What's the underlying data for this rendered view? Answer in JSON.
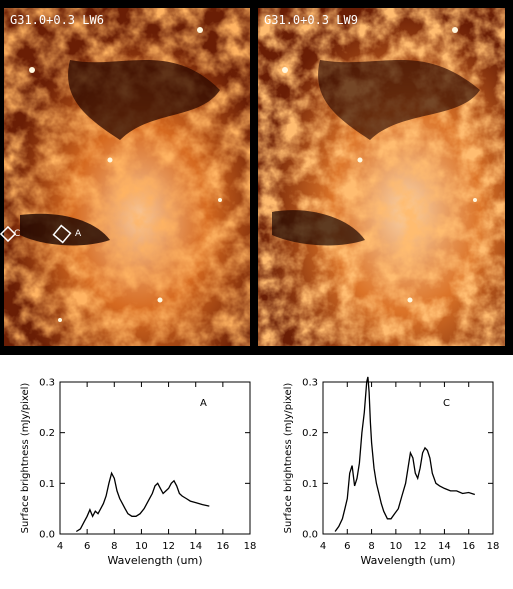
{
  "images": [
    {
      "label": "G31.0+0.3 LW6"
    },
    {
      "label": "G31.0+0.3 LW9"
    }
  ],
  "annotations": {
    "marker_a": "A",
    "marker_c": "C"
  },
  "chart_data": [
    {
      "type": "line",
      "panel_label": "A",
      "xlabel": "Wavelength (um)",
      "ylabel": "Surface brightness (mJy/pixel)",
      "xlim": [
        4,
        18
      ],
      "ylim": [
        0,
        0.3
      ],
      "xticks": [
        4,
        6,
        8,
        10,
        12,
        14,
        16,
        18
      ],
      "yticks": [
        0.0,
        0.1,
        0.2,
        0.3
      ],
      "grid": false,
      "x": [
        5.2,
        5.5,
        5.8,
        6.0,
        6.2,
        6.4,
        6.6,
        6.8,
        7.0,
        7.2,
        7.4,
        7.6,
        7.8,
        8.0,
        8.2,
        8.4,
        8.6,
        8.8,
        9.0,
        9.3,
        9.6,
        9.9,
        10.2,
        10.5,
        10.8,
        11.0,
        11.2,
        11.4,
        11.6,
        11.8,
        12.0,
        12.2,
        12.4,
        12.6,
        12.8,
        13.0,
        13.3,
        13.6,
        14.0,
        14.5,
        15.0
      ],
      "y": [
        0.005,
        0.01,
        0.025,
        0.035,
        0.048,
        0.035,
        0.045,
        0.04,
        0.05,
        0.06,
        0.075,
        0.1,
        0.12,
        0.11,
        0.085,
        0.07,
        0.06,
        0.05,
        0.04,
        0.035,
        0.035,
        0.04,
        0.05,
        0.065,
        0.08,
        0.095,
        0.1,
        0.09,
        0.08,
        0.085,
        0.09,
        0.1,
        0.105,
        0.095,
        0.08,
        0.075,
        0.07,
        0.065,
        0.062,
        0.058,
        0.055
      ]
    },
    {
      "type": "line",
      "panel_label": "C",
      "xlabel": "Wavelength (um)",
      "ylabel": "Surface brightness (mJy/pixel)",
      "xlim": [
        4,
        18
      ],
      "ylim": [
        0,
        0.3
      ],
      "xticks": [
        4,
        6,
        8,
        10,
        12,
        14,
        16,
        18
      ],
      "yticks": [
        0.0,
        0.1,
        0.2,
        0.3
      ],
      "grid": false,
      "x": [
        5.0,
        5.3,
        5.6,
        5.8,
        6.0,
        6.2,
        6.4,
        6.6,
        6.8,
        7.0,
        7.2,
        7.4,
        7.6,
        7.7,
        7.8,
        7.9,
        8.0,
        8.2,
        8.4,
        8.6,
        8.8,
        9.0,
        9.3,
        9.6,
        9.9,
        10.2,
        10.5,
        10.8,
        11.0,
        11.2,
        11.4,
        11.6,
        11.8,
        12.0,
        12.2,
        12.4,
        12.6,
        12.8,
        13.0,
        13.3,
        13.6,
        14.0,
        14.5,
        15.0,
        15.5,
        16.0,
        16.5
      ],
      "y": [
        0.005,
        0.015,
        0.03,
        0.05,
        0.07,
        0.12,
        0.135,
        0.095,
        0.11,
        0.14,
        0.2,
        0.24,
        0.3,
        0.31,
        0.28,
        0.22,
        0.18,
        0.13,
        0.1,
        0.08,
        0.06,
        0.045,
        0.03,
        0.03,
        0.04,
        0.05,
        0.075,
        0.1,
        0.13,
        0.16,
        0.15,
        0.12,
        0.11,
        0.13,
        0.16,
        0.17,
        0.165,
        0.15,
        0.12,
        0.1,
        0.095,
        0.09,
        0.085,
        0.085,
        0.08,
        0.082,
        0.078
      ]
    }
  ]
}
